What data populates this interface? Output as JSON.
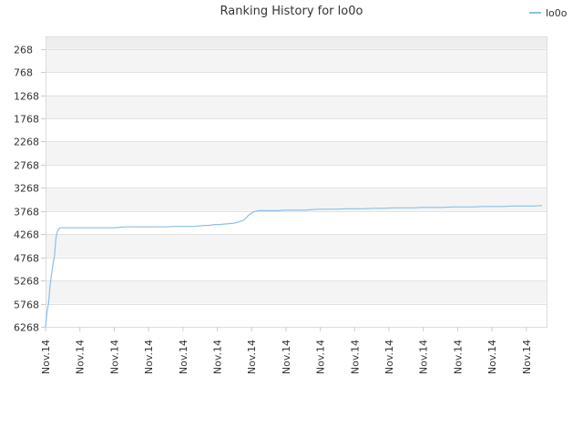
{
  "chart_data": {
    "type": "line",
    "title": "Ranking History for lo0o",
    "xlabel": "",
    "ylabel": "",
    "y_inverted": true,
    "ylim": [
      6268,
      0
    ],
    "y_ticks": [
      268,
      768,
      1268,
      1768,
      2268,
      2768,
      3268,
      3768,
      4268,
      4768,
      5268,
      5768,
      6268
    ],
    "x_tick_labels": [
      "Nov.14",
      "Nov.14",
      "Nov.14",
      "Nov.14",
      "Nov.14",
      "Nov.14",
      "Nov.14",
      "Nov.14",
      "Nov.14",
      "Nov.14",
      "Nov.14",
      "Nov.14",
      "Nov.14",
      "Nov.14",
      "Nov.14"
    ],
    "grid": true,
    "legend_position": "top-right",
    "series": [
      {
        "name": "lo0o",
        "color": "#8cbfe8",
        "x": [
          0,
          0.3,
          0.6,
          0.9,
          1.2,
          1.5,
          1.8,
          2.1,
          2.4,
          2.7,
          3,
          3.5,
          4,
          4.5,
          5,
          6,
          7,
          8,
          9,
          10,
          11,
          12,
          14,
          16,
          18,
          20,
          22,
          24,
          26,
          28,
          30,
          32,
          33,
          34,
          35,
          36,
          37,
          38,
          39,
          40,
          41,
          42,
          43,
          44,
          45,
          46,
          47,
          48,
          50,
          52,
          55,
          58,
          61,
          64,
          66,
          68,
          70,
          72,
          74,
          76,
          78,
          80,
          82,
          84,
          86,
          88,
          90,
          92,
          94,
          96,
          98,
          100
        ],
        "y": [
          6268,
          5950,
          5760,
          5400,
          5150,
          4900,
          4750,
          4350,
          4200,
          4150,
          4130,
          4130,
          4130,
          4130,
          4130,
          4130,
          4130,
          4130,
          4130,
          4130,
          4130,
          4130,
          4130,
          4110,
          4110,
          4110,
          4110,
          4110,
          4100,
          4100,
          4100,
          4080,
          4080,
          4060,
          4060,
          4050,
          4040,
          4030,
          4000,
          3960,
          3850,
          3780,
          3760,
          3760,
          3760,
          3760,
          3760,
          3750,
          3750,
          3750,
          3730,
          3730,
          3720,
          3720,
          3710,
          3710,
          3700,
          3700,
          3700,
          3690,
          3690,
          3690,
          3680,
          3680,
          3680,
          3670,
          3670,
          3670,
          3660,
          3660,
          3660,
          3650
        ]
      }
    ]
  }
}
